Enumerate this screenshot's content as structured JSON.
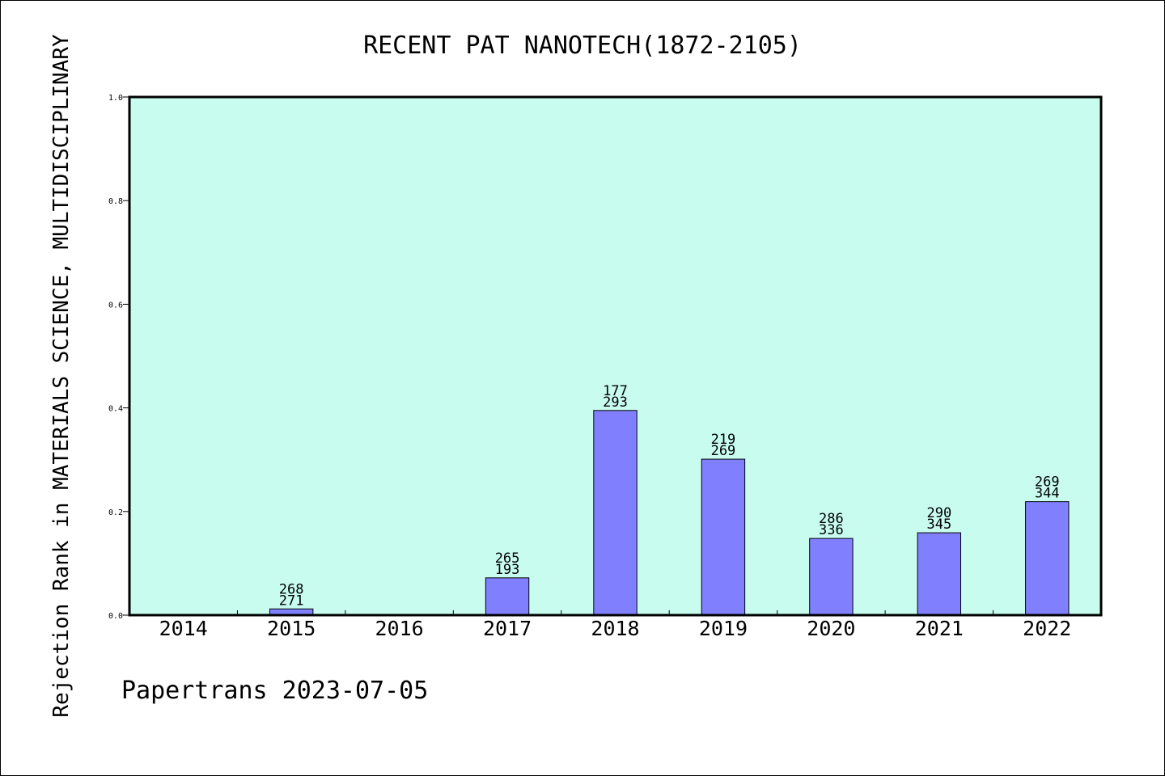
{
  "chart_data": {
    "type": "bar",
    "title": "RECENT PAT NANOTECH(1872-2105)",
    "ylabel": "Rejection Rank in MATERIALS SCIENCE, MULTIDISCIPLINARY",
    "xlabel": "",
    "footer": "Papertrans 2023-07-05",
    "categories": [
      "2014",
      "2015",
      "2016",
      "2017",
      "2018",
      "2019",
      "2020",
      "2021",
      "2022"
    ],
    "values": [
      0,
      0.012,
      0,
      0.072,
      0.395,
      0.301,
      0.148,
      0.159,
      0.219
    ],
    "bar_labels": [
      null,
      [
        "268",
        "271"
      ],
      null,
      [
        "265",
        "193"
      ],
      [
        "177",
        "293"
      ],
      [
        "219",
        "269"
      ],
      [
        "286",
        "336"
      ],
      [
        "290",
        "345"
      ],
      [
        "269",
        "344"
      ]
    ],
    "ylim": [
      0,
      1.0
    ],
    "yticks": [
      "0.0",
      "0.2",
      "0.4",
      "0.6",
      "0.8",
      "1.0"
    ],
    "grid": false,
    "colors": {
      "plot_background": "#c8fcee",
      "bar_fill": "#8080ff",
      "bar_stroke": "#000000",
      "axis": "#000000"
    }
  }
}
